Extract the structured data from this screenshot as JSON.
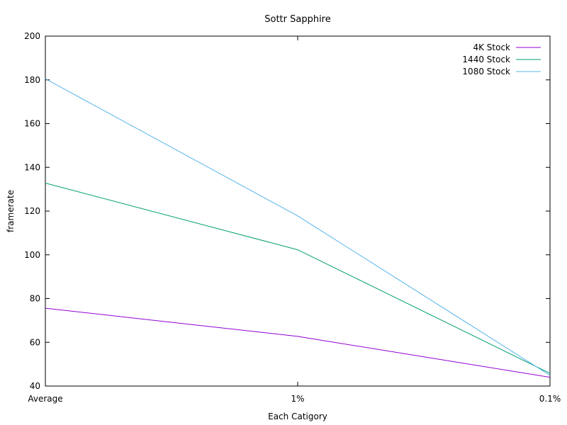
{
  "chart_data": {
    "type": "line",
    "title": "Sottr Sapphire",
    "xlabel": "Each Catigory",
    "ylabel": "framerate",
    "categories": [
      "Average",
      "1%",
      "0.1%"
    ],
    "ylim": [
      40,
      200
    ],
    "yticks": [
      40,
      60,
      80,
      100,
      120,
      140,
      160,
      180,
      200
    ],
    "grid": false,
    "legend_position": "top-right",
    "series": [
      {
        "name": "4K Stock",
        "color": "#9400d3",
        "values": [
          75.6,
          62.7,
          44.0
        ]
      },
      {
        "name": "1440 Stock",
        "color": "#009e73",
        "values": [
          132.8,
          102.3,
          45.8
        ]
      },
      {
        "name": "1080 Stock",
        "color": "#56b4e9",
        "values": [
          180.5,
          117.8,
          44.9
        ]
      }
    ]
  }
}
